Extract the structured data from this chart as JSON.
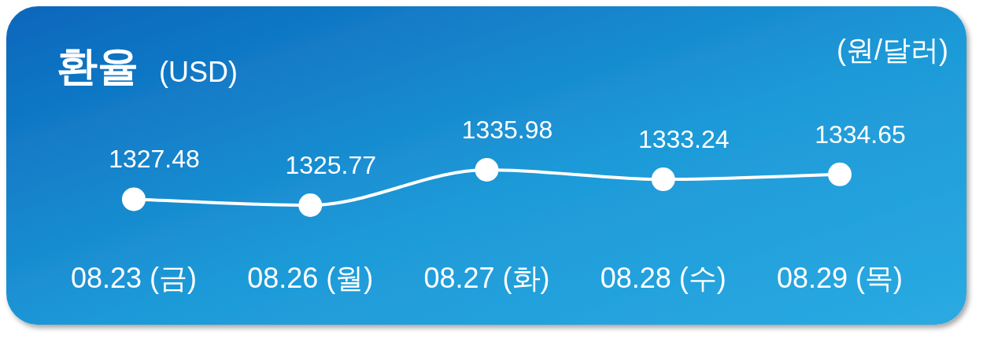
{
  "chart_data": {
    "type": "line",
    "title": "환율",
    "subtitle": "(USD)",
    "ylabel": "(원/달러)",
    "categories": [
      "08.23 (금)",
      "08.26 (월)",
      "08.27 (화)",
      "08.28 (수)",
      "08.29 (목)"
    ],
    "values": [
      1327.48,
      1325.77,
      1335.98,
      1333.24,
      1334.65
    ],
    "color": "#ffffff",
    "data_labels": true,
    "marker": "circle",
    "line_style": "solid"
  }
}
